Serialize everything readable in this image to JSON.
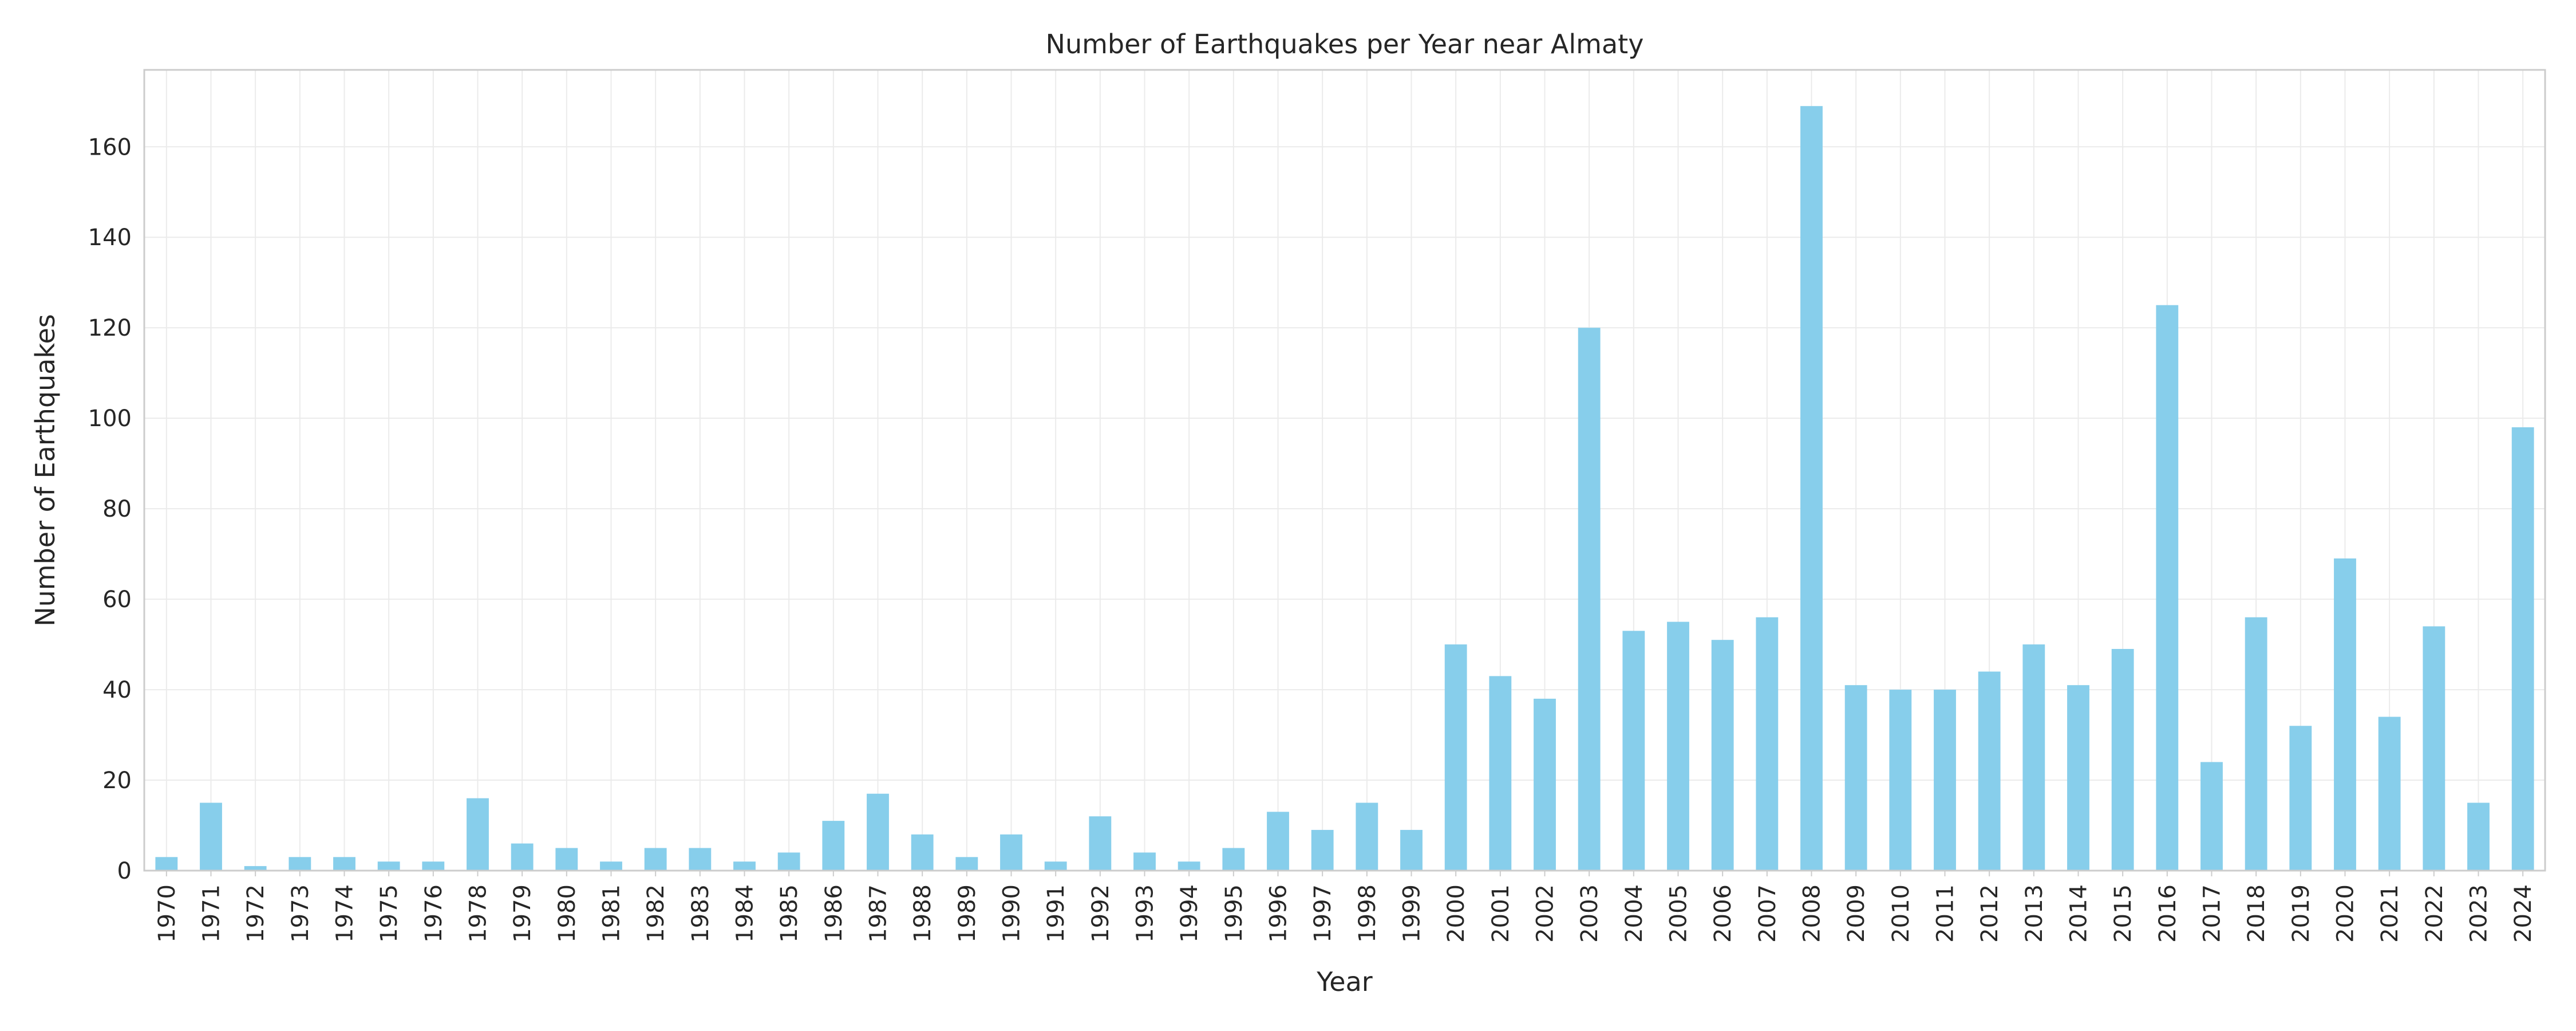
{
  "chart_data": {
    "type": "bar",
    "title": "Number of Earthquakes per Year near Almaty",
    "xlabel": "Year",
    "ylabel": "Number of Earthquakes",
    "ylim": [
      0,
      177
    ],
    "yticks": [
      0,
      20,
      40,
      60,
      80,
      100,
      120,
      140,
      160
    ],
    "grid": true,
    "colors": {
      "bar": "#87ceeb",
      "grid": "#ebebeb",
      "frame": "#cccccc",
      "text": "#262626"
    },
    "categories": [
      "1970",
      "1971",
      "1972",
      "1973",
      "1974",
      "1975",
      "1976",
      "1978",
      "1979",
      "1980",
      "1981",
      "1982",
      "1983",
      "1984",
      "1985",
      "1986",
      "1987",
      "1988",
      "1989",
      "1990",
      "1991",
      "1992",
      "1993",
      "1994",
      "1995",
      "1996",
      "1997",
      "1998",
      "1999",
      "2000",
      "2001",
      "2002",
      "2003",
      "2004",
      "2005",
      "2006",
      "2007",
      "2008",
      "2009",
      "2010",
      "2011",
      "2012",
      "2013",
      "2014",
      "2015",
      "2016",
      "2017",
      "2018",
      "2019",
      "2020",
      "2021",
      "2022",
      "2023",
      "2024"
    ],
    "values": [
      3,
      15,
      1,
      3,
      3,
      2,
      2,
      16,
      6,
      5,
      2,
      5,
      5,
      2,
      4,
      11,
      17,
      8,
      3,
      8,
      2,
      12,
      4,
      2,
      5,
      13,
      9,
      15,
      9,
      50,
      43,
      38,
      120,
      53,
      55,
      51,
      56,
      169,
      41,
      40,
      40,
      44,
      50,
      41,
      49,
      125,
      24,
      56,
      32,
      69,
      34,
      54,
      15,
      98
    ]
  }
}
